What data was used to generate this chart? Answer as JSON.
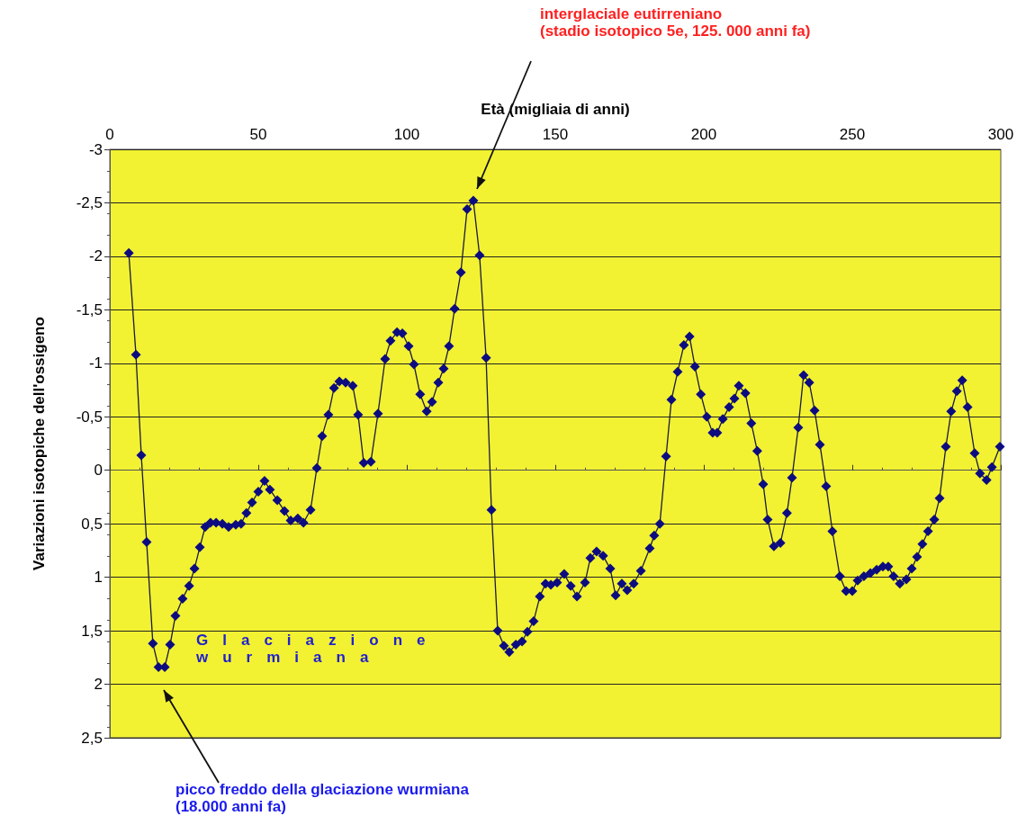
{
  "chart_data": {
    "type": "line",
    "xlabel": "Età (migliaia di anni)",
    "ylabel": "Variazioni isotopiche dell'ossigeno",
    "xlim": [
      0,
      300
    ],
    "xticks": [
      0,
      50,
      100,
      150,
      200,
      250,
      300
    ],
    "ylim": [
      2.5,
      -3
    ],
    "yticks": [
      -3,
      {
        "value": -2.5,
        "label": "-2,5"
      },
      -2,
      {
        "value": -1.5,
        "label": "-1,5"
      },
      -1,
      {
        "value": -0.5,
        "label": "-0,5"
      },
      0,
      {
        "value": 0.5,
        "label": "0,5"
      },
      1,
      {
        "value": 1.5,
        "label": "1,5"
      },
      2,
      {
        "value": 2.5,
        "label": "2,5"
      }
    ],
    "grid": "y",
    "marker": "diamond",
    "line_style": "solid",
    "annotations": [
      "interglaciale eutirreniano\n(stadio isotopico 5e, 125. 000 anni fa)",
      "picco freddo della glaciazione wurmiana\n(18.000 anni fa)",
      "Glaciazione\nwurmiana"
    ],
    "series": [
      {
        "color": "#0c0c80",
        "x": [
          6.4,
          8.8,
          10.6,
          12.4,
          14.5,
          16.4,
          18.5,
          20.3,
          22.1,
          24.5,
          26.7,
          28.5,
          30.3,
          32.1,
          33.9,
          35.8,
          37.9,
          40,
          42.4,
          44.2,
          46,
          47.9,
          50,
          52.1,
          53.9,
          56.4,
          58.8,
          60.9,
          63.3,
          65.2,
          67.6,
          69.7,
          71.5,
          73.6,
          75.5,
          77.3,
          79.4,
          81.8,
          83.6,
          85.5,
          87.9,
          90.3,
          92.7,
          94.5,
          96.7,
          98.5,
          100.6,
          102.4,
          104.5,
          106.7,
          108.5,
          110.6,
          112.4,
          114.2,
          116.1,
          118.2,
          120.3,
          122.4,
          124.5,
          126.7,
          128.5,
          130.6,
          132.7,
          134.5,
          136.7,
          138.8,
          140.6,
          142.7,
          144.8,
          146.7,
          148.5,
          150.6,
          153,
          155.2,
          157.3,
          160,
          161.8,
          163.9,
          166.1,
          168.5,
          170.3,
          172.4,
          174.2,
          176.4,
          178.8,
          181.8,
          183.3,
          185.2,
          187.3,
          189.1,
          191.2,
          193.3,
          195.2,
          197,
          199,
          201,
          203,
          204.5,
          206.4,
          208.5,
          210.3,
          211.8,
          214,
          216,
          218,
          220,
          221.5,
          223.6,
          225.8,
          228,
          229.7,
          231.8,
          233.6,
          235.5,
          237.3,
          239.1,
          241.2,
          243.3,
          245.8,
          247.9,
          250,
          251.8,
          253.9,
          256.1,
          258.2,
          260.3,
          262.1,
          263.9,
          266,
          268.2,
          270,
          271.8,
          273.6,
          275.5,
          277.6,
          279.4,
          281.5,
          283.3,
          285.2,
          287,
          288.8,
          291.2,
          293,
          295.2,
          297,
          299.7
        ],
        "values": [
          -2.03,
          -1.08,
          -0.14,
          0.67,
          1.62,
          1.84,
          1.84,
          1.63,
          1.36,
          1.2,
          1.08,
          0.92,
          0.72,
          0.53,
          0.49,
          0.49,
          0.5,
          0.53,
          0.51,
          0.5,
          0.4,
          0.3,
          0.2,
          0.1,
          0.18,
          0.28,
          0.38,
          0.47,
          0.45,
          0.49,
          0.37,
          -0.02,
          -0.32,
          -0.52,
          -0.77,
          -0.83,
          -0.82,
          -0.79,
          -0.52,
          -0.07,
          -0.08,
          -0.53,
          -1.04,
          -1.21,
          -1.29,
          -1.28,
          -1.16,
          -0.99,
          -0.71,
          -0.55,
          -0.64,
          -0.82,
          -0.95,
          -1.16,
          -1.51,
          -1.85,
          -2.44,
          -2.52,
          -2.01,
          -1.05,
          0.37,
          1.5,
          1.64,
          1.7,
          1.63,
          1.6,
          1.51,
          1.41,
          1.18,
          1.06,
          1.07,
          1.05,
          0.97,
          1.08,
          1.18,
          1.05,
          0.82,
          0.76,
          0.8,
          0.92,
          1.17,
          1.06,
          1.12,
          1.06,
          0.94,
          0.73,
          0.61,
          0.5,
          -0.13,
          -0.66,
          -0.92,
          -1.17,
          -1.25,
          -0.97,
          -0.71,
          -0.5,
          -0.35,
          -0.35,
          -0.48,
          -0.59,
          -0.67,
          -0.79,
          -0.72,
          -0.44,
          -0.18,
          0.13,
          0.46,
          0.71,
          0.68,
          0.4,
          0.07,
          -0.4,
          -0.89,
          -0.82,
          -0.56,
          -0.24,
          0.15,
          0.57,
          0.99,
          1.13,
          1.13,
          1.03,
          0.99,
          0.96,
          0.93,
          0.9,
          0.9,
          0.99,
          1.06,
          1.02,
          0.92,
          0.81,
          0.69,
          0.57,
          0.46,
          0.26,
          -0.22,
          -0.55,
          -0.74,
          -0.84,
          -0.59,
          -0.16,
          0.03,
          0.09,
          -0.03,
          -0.22
        ]
      }
    ]
  }
}
